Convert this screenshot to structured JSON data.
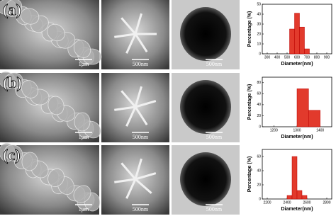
{
  "panels": {
    "labels": [
      "(a)",
      "(b)",
      "(c)"
    ],
    "scale_bars": [
      "1μm",
      "500nm",
      "500nm"
    ]
  },
  "chart_data": [
    {
      "type": "histogram",
      "xlabel": "Diameter(nm)",
      "ylabel": "Percentage (%)",
      "color": "#e23a2c",
      "bins": [
        525,
        575,
        625,
        675,
        725
      ],
      "values": [
        25,
        41,
        27,
        5
      ],
      "xlim": [
        250,
        950
      ],
      "xticks": [
        300,
        400,
        500,
        600,
        700,
        800,
        900
      ],
      "ylim": [
        0,
        50
      ],
      "yticks": [
        0,
        10,
        20,
        30,
        40,
        50
      ]
    },
    {
      "type": "histogram",
      "xlabel": "Diameter(nm)",
      "ylabel": "Percentage (%)",
      "color": "#e23a2c",
      "bins": [
        1300,
        1350,
        1400
      ],
      "values": [
        69,
        30
      ],
      "xlim": [
        1150,
        1450
      ],
      "xticks": [
        1200,
        1300,
        1400
      ],
      "ylim": [
        0,
        90
      ],
      "yticks": [
        0,
        20,
        40,
        60,
        80
      ]
    },
    {
      "type": "histogram",
      "xlabel": "Diameter(nm)",
      "ylabel": "Percentage (%)",
      "color": "#e23a2c",
      "bins": [
        2400,
        2450,
        2500,
        2550,
        2600
      ],
      "values": [
        5,
        60,
        12,
        5
      ],
      "xlim": [
        2150,
        2850
      ],
      "xticks": [
        2200,
        2400,
        2600,
        2800
      ],
      "ylim": [
        0,
        70
      ],
      "yticks": [
        0,
        20,
        40,
        60
      ]
    }
  ]
}
